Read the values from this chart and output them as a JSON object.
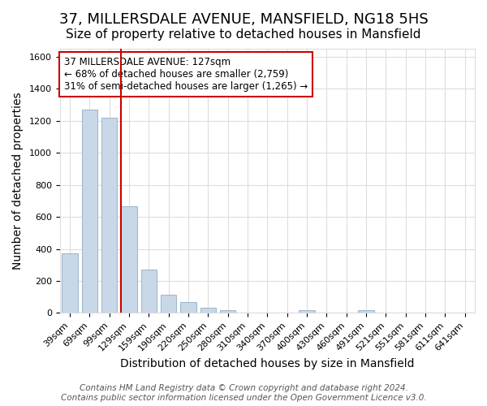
{
  "title": "37, MILLERSDALE AVENUE, MANSFIELD, NG18 5HS",
  "subtitle": "Size of property relative to detached houses in Mansfield",
  "xlabel": "Distribution of detached houses by size in Mansfield",
  "ylabel": "Number of detached properties",
  "bar_labels": [
    "39sqm",
    "69sqm",
    "99sqm",
    "129sqm",
    "159sqm",
    "190sqm",
    "220sqm",
    "250sqm",
    "280sqm",
    "310sqm",
    "340sqm",
    "370sqm",
    "400sqm",
    "430sqm",
    "460sqm",
    "491sqm",
    "521sqm",
    "551sqm",
    "581sqm",
    "611sqm",
    "641sqm"
  ],
  "bar_values": [
    370,
    1270,
    1220,
    665,
    270,
    115,
    70,
    35,
    15,
    0,
    0,
    0,
    15,
    0,
    0,
    15,
    0,
    0,
    0,
    0,
    0
  ],
  "bar_color": "#c8d8e8",
  "bar_edge_color": "#a0b8cc",
  "vline_x_index": 3,
  "vline_color": "#cc0000",
  "annotation_title": "37 MILLERSDALE AVENUE: 127sqm",
  "annotation_line1": "← 68% of detached houses are smaller (2,759)",
  "annotation_line2": "31% of semi-detached houses are larger (1,265) →",
  "annotation_box_color": "#ffffff",
  "annotation_box_edge": "#cc0000",
  "ylim": [
    0,
    1650
  ],
  "yticks": [
    0,
    200,
    400,
    600,
    800,
    1000,
    1200,
    1400,
    1600
  ],
  "footer_line1": "Contains HM Land Registry data © Crown copyright and database right 2024.",
  "footer_line2": "Contains public sector information licensed under the Open Government Licence v3.0.",
  "background_color": "#ffffff",
  "grid_color": "#dddddd",
  "title_fontsize": 13,
  "subtitle_fontsize": 11,
  "axis_label_fontsize": 10,
  "tick_fontsize": 8,
  "annotation_fontsize": 8.5,
  "footer_fontsize": 7.5
}
